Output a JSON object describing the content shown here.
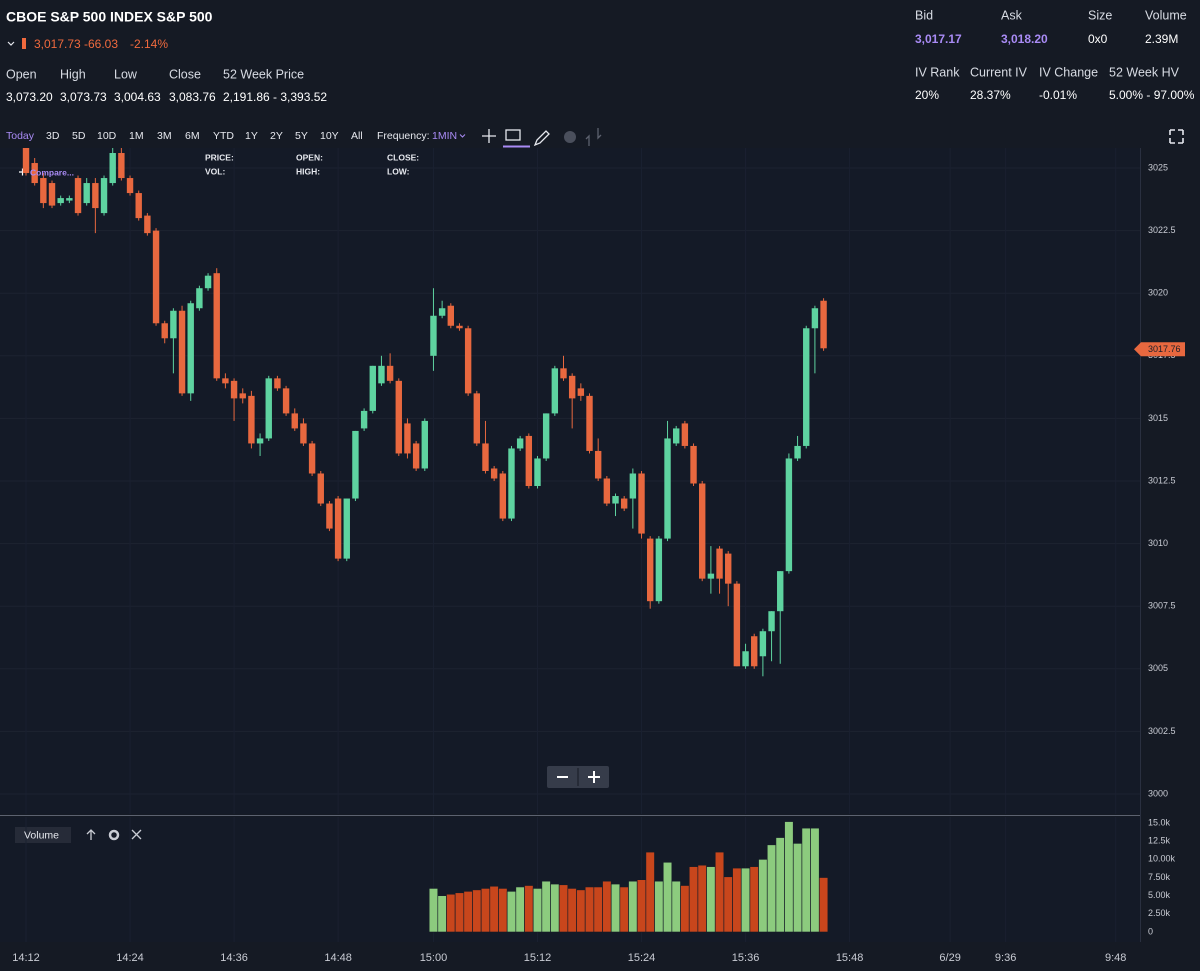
{
  "header": {
    "title": "CBOE S&P 500 INDEX S&P 500",
    "price": "3,017.73",
    "change": "-66.03",
    "change_pct": "-2.14%"
  },
  "stats": [
    {
      "label": "Open",
      "value": "3,073.20"
    },
    {
      "label": "High",
      "value": "3,073.73"
    },
    {
      "label": "Low",
      "value": "3,004.63"
    },
    {
      "label": "Close",
      "value": "3,083.76"
    },
    {
      "label": "52 Week Price",
      "value": "2,191.86 - 3,393.52"
    }
  ],
  "quote": [
    {
      "label": "Bid",
      "value": "3,017.17"
    },
    {
      "label": "Ask",
      "value": "3,018.20"
    },
    {
      "label": "Size",
      "value": "0x0"
    },
    {
      "label": "Volume",
      "value": "2.39M"
    }
  ],
  "iv": [
    {
      "label": "IV Rank",
      "value": "20%"
    },
    {
      "label": "Current IV",
      "value": "28.37%"
    },
    {
      "label": "IV Change",
      "value": "-0.01%"
    },
    {
      "label": "52 Week HV",
      "value": "5.00% - 97.00%"
    }
  ],
  "toolbar": {
    "ranges": [
      "Today",
      "3D",
      "5D",
      "10D",
      "1M",
      "3M",
      "6M",
      "YTD",
      "1Y",
      "2Y",
      "5Y",
      "10Y",
      "All"
    ],
    "frequency_label": "Frequency:",
    "frequency": "1MIN"
  },
  "overlay": {
    "compare": "Compare...",
    "fields": [
      "PRICE:",
      "VOL:",
      "OPEN:",
      "HIGH:",
      "CLOSE:",
      "LOW:"
    ]
  },
  "volume_panel": {
    "label": "Volume"
  },
  "chart_data": {
    "type": "candlestick",
    "grid": true,
    "up_color": "#5ed3a0",
    "down_color": "#e8683f",
    "volume_up_color": "#8ccb7e",
    "volume_down_color": "#c8461c",
    "open": [
      3025.8,
      3025.2,
      3024.6,
      3024.4,
      3023.6,
      3023.7,
      3024.6,
      3023.6,
      3024.4,
      3023.2,
      3024.4,
      3025.6,
      3024.6,
      3024.0,
      3023.1,
      3022.5,
      3018.8,
      3018.2,
      3019.3,
      3016.0,
      3019.4,
      3020.2,
      3020.8,
      3016.6,
      3016.5,
      3016.0,
      3015.9,
      3014.0,
      3014.2,
      3016.6,
      3016.2,
      3015.2,
      3014.8,
      3014.0,
      3012.8,
      3011.6,
      3011.8,
      3009.4,
      3011.8,
      3014.6,
      3015.3,
      3016.4,
      3017.1,
      3016.5,
      3014.8,
      3014.0,
      3013.0,
      3017.5,
      3019.1,
      3019.5,
      3018.7,
      3018.6,
      3016.0,
      3014.0,
      3013.0,
      3012.8,
      3011.0,
      3013.8,
      3014.3,
      3012.3,
      3013.4,
      3015.2,
      3017.0,
      3016.7,
      3016.2,
      3015.9,
      3013.7,
      3012.6,
      3011.6,
      3011.8,
      3011.8,
      3012.8,
      3010.2,
      3007.7,
      3010.2,
      3014.0,
      3014.8,
      3013.9,
      3012.4,
      3008.6,
      3009.8,
      3009.6,
      3008.4,
      3005.1,
      3006.3,
      3005.5,
      3006.5,
      3007.3,
      3008.9,
      3013.4,
      3013.9,
      3018.6,
      3019.7
    ],
    "high": [
      3026.0,
      3025.4,
      3024.8,
      3024.5,
      3023.9,
      3023.9,
      3024.7,
      3024.6,
      3024.6,
      3024.7,
      3025.8,
      3025.8,
      3024.7,
      3024.1,
      3023.2,
      3022.6,
      3018.9,
      3019.4,
      3019.5,
      3019.7,
      3020.3,
      3020.8,
      3021.0,
      3016.8,
      3016.6,
      3016.2,
      3016.1,
      3014.4,
      3016.7,
      3016.7,
      3016.3,
      3015.4,
      3015.0,
      3014.1,
      3012.9,
      3011.7,
      3011.9,
      3011.8,
      3014.5,
      3015.4,
      3017.1,
      3017.5,
      3017.6,
      3016.6,
      3015.0,
      3014.1,
      3015.0,
      3020.2,
      3019.7,
      3019.6,
      3018.8,
      3018.7,
      3016.1,
      3014.9,
      3013.1,
      3012.9,
      3013.9,
      3014.3,
      3014.4,
      3013.5,
      3015.2,
      3017.1,
      3017.5,
      3016.8,
      3016.4,
      3016.0,
      3014.2,
      3012.7,
      3012.0,
      3011.9,
      3013.0,
      3012.9,
      3010.3,
      3010.3,
      3014.9,
      3014.7,
      3014.9,
      3014.0,
      3012.5,
      3009.9,
      3009.9,
      3009.7,
      3008.5,
      3006.0,
      3006.4,
      3006.6,
      3007.3,
      3008.9,
      3013.6,
      3014.3,
      3018.7,
      3019.5,
      3019.8
    ],
    "low": [
      3024.7,
      3024.3,
      3023.4,
      3023.4,
      3023.5,
      3023.6,
      3023.1,
      3023.5,
      3022.4,
      3023.1,
      3024.3,
      3024.5,
      3023.9,
      3022.9,
      3022.3,
      3018.7,
      3018.0,
      3016.8,
      3015.9,
      3015.7,
      3019.3,
      3020.1,
      3016.5,
      3016.2,
      3014.9,
      3015.6,
      3013.8,
      3013.5,
      3014.1,
      3016.1,
      3015.1,
      3014.5,
      3013.9,
      3012.7,
      3011.5,
      3010.5,
      3009.3,
      3009.3,
      3011.7,
      3014.5,
      3015.2,
      3016.3,
      3016.4,
      3013.5,
      3013.4,
      3012.9,
      3012.9,
      3016.9,
      3019.0,
      3018.6,
      3018.5,
      3015.9,
      3013.9,
      3012.8,
      3012.5,
      3010.9,
      3010.9,
      3013.7,
      3012.2,
      3012.2,
      3013.3,
      3015.1,
      3016.5,
      3014.6,
      3015.7,
      3013.6,
      3012.5,
      3011.5,
      3011.1,
      3011.3,
      3010.6,
      3010.2,
      3007.4,
      3007.6,
      3010.1,
      3013.9,
      3013.8,
      3012.3,
      3008.5,
      3008.0,
      3008.0,
      3007.5,
      3005.1,
      3005.0,
      3005.0,
      3004.7,
      3005.3,
      3005.2,
      3008.8,
      3013.3,
      3013.8,
      3016.8,
      3017.7
    ],
    "close": [
      3024.8,
      3024.4,
      3023.6,
      3023.5,
      3023.8,
      3023.8,
      3023.2,
      3024.4,
      3023.4,
      3024.6,
      3025.6,
      3024.6,
      3024.0,
      3023.0,
      3022.4,
      3018.8,
      3018.2,
      3019.3,
      3016.0,
      3019.6,
      3020.2,
      3020.7,
      3016.6,
      3016.4,
      3015.8,
      3015.8,
      3014.0,
      3014.2,
      3016.6,
      3016.2,
      3015.2,
      3014.6,
      3014.0,
      3012.8,
      3011.6,
      3010.6,
      3009.4,
      3011.8,
      3014.5,
      3015.3,
      3017.1,
      3017.1,
      3016.5,
      3013.6,
      3013.6,
      3013.0,
      3014.9,
      3019.1,
      3019.4,
      3018.7,
      3018.6,
      3016.0,
      3014.0,
      3012.9,
      3012.6,
      3011.0,
      3013.8,
      3014.2,
      3012.3,
      3013.4,
      3015.2,
      3017.0,
      3016.6,
      3015.8,
      3015.9,
      3013.7,
      3012.6,
      3011.6,
      3011.9,
      3011.4,
      3012.8,
      3010.4,
      3007.7,
      3010.2,
      3014.2,
      3014.6,
      3013.9,
      3012.4,
      3008.6,
      3008.8,
      3008.6,
      3008.4,
      3005.1,
      3005.7,
      3005.1,
      3006.5,
      3007.3,
      3008.9,
      3013.4,
      3013.9,
      3018.6,
      3019.4,
      3017.8
    ],
    "volume": [
      null,
      null,
      null,
      null,
      null,
      null,
      null,
      null,
      null,
      null,
      null,
      null,
      null,
      null,
      null,
      null,
      null,
      null,
      null,
      null,
      null,
      null,
      null,
      null,
      null,
      null,
      null,
      null,
      null,
      null,
      null,
      null,
      null,
      null,
      null,
      null,
      null,
      null,
      null,
      null,
      null,
      null,
      null,
      null,
      null,
      null,
      null,
      6000,
      5000,
      5200,
      5400,
      5600,
      5800,
      6000,
      6300,
      6000,
      5600,
      6200,
      6400,
      6000,
      7000,
      6600,
      6500,
      6000,
      5800,
      6200,
      6200,
      7000,
      6600,
      6200,
      7000,
      7200,
      11000,
      7000,
      9600,
      7000,
      6400,
      9000,
      9200,
      9000,
      11000,
      7600,
      8800,
      8800,
      9000,
      10000,
      12000,
      13000,
      15200,
      12200,
      14300,
      14300,
      7500
    ],
    "last_price": 3017.76,
    "xlim": [
      -3,
      128.5
    ],
    "xticks": [
      {
        "value": 0,
        "label": "14:12"
      },
      {
        "value": 12,
        "label": "14:24"
      },
      {
        "value": 24,
        "label": "14:36"
      },
      {
        "value": 36,
        "label": "14:48"
      },
      {
        "value": 47,
        "label": "15:00"
      },
      {
        "value": 59,
        "label": "15:12"
      },
      {
        "value": 71,
        "label": "15:24"
      },
      {
        "value": 83,
        "label": "15:36"
      },
      {
        "value": 95,
        "label": "15:48"
      },
      {
        "value": 106.6,
        "label": "6/29"
      },
      {
        "value": 113,
        "label": "9:36"
      },
      {
        "value": 125.7,
        "label": "9:48"
      }
    ],
    "ylim": [
      2999.2,
      3025.8
    ],
    "yticks": [
      3000,
      3002.5,
      3005,
      3007.5,
      3010,
      3012.5,
      3015,
      3017.5,
      3020,
      3022.5,
      3025
    ],
    "volume_ylim": [
      0,
      15500
    ],
    "volume_yticks": [
      0,
      {
        "value": 2500,
        "label": "2.50k"
      },
      {
        "value": 5000,
        "label": "5.00k"
      },
      {
        "value": 7500,
        "label": "7.50k"
      },
      {
        "value": 10000,
        "label": "10.00k"
      },
      {
        "value": 12500,
        "label": "12.5k"
      },
      {
        "value": 15000,
        "label": "15.0k"
      }
    ]
  }
}
